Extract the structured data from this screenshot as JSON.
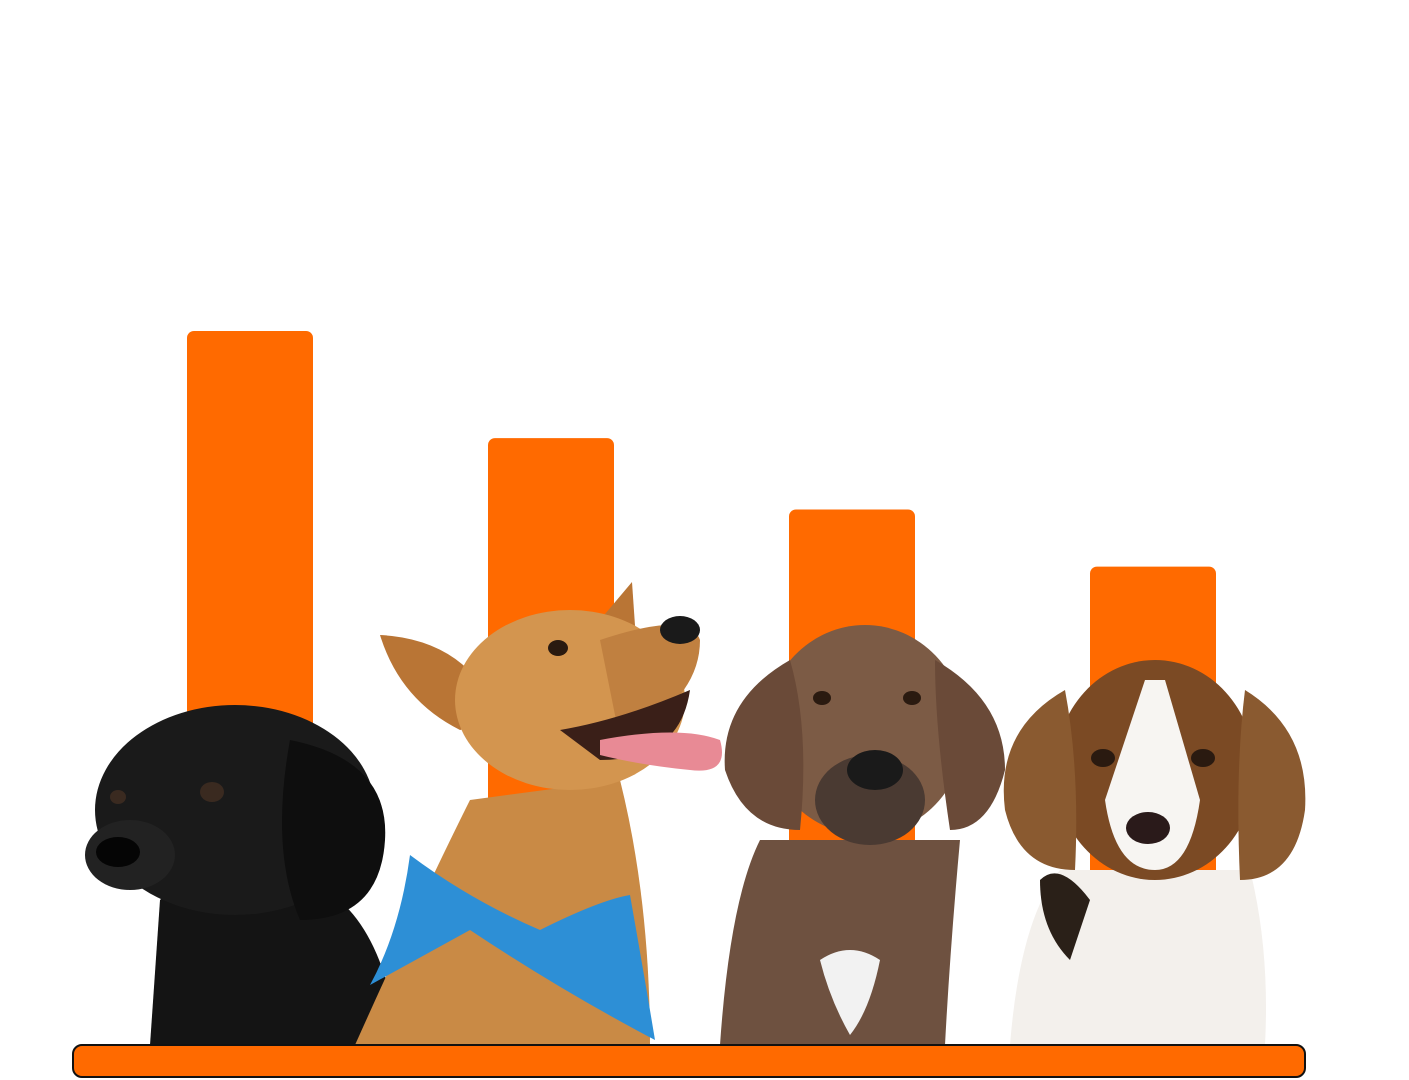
{
  "chart_data": {
    "type": "bar",
    "values": [
      100,
      85,
      75,
      67
    ],
    "color": "#ff6a00",
    "ylim": [
      0,
      100
    ]
  }
}
